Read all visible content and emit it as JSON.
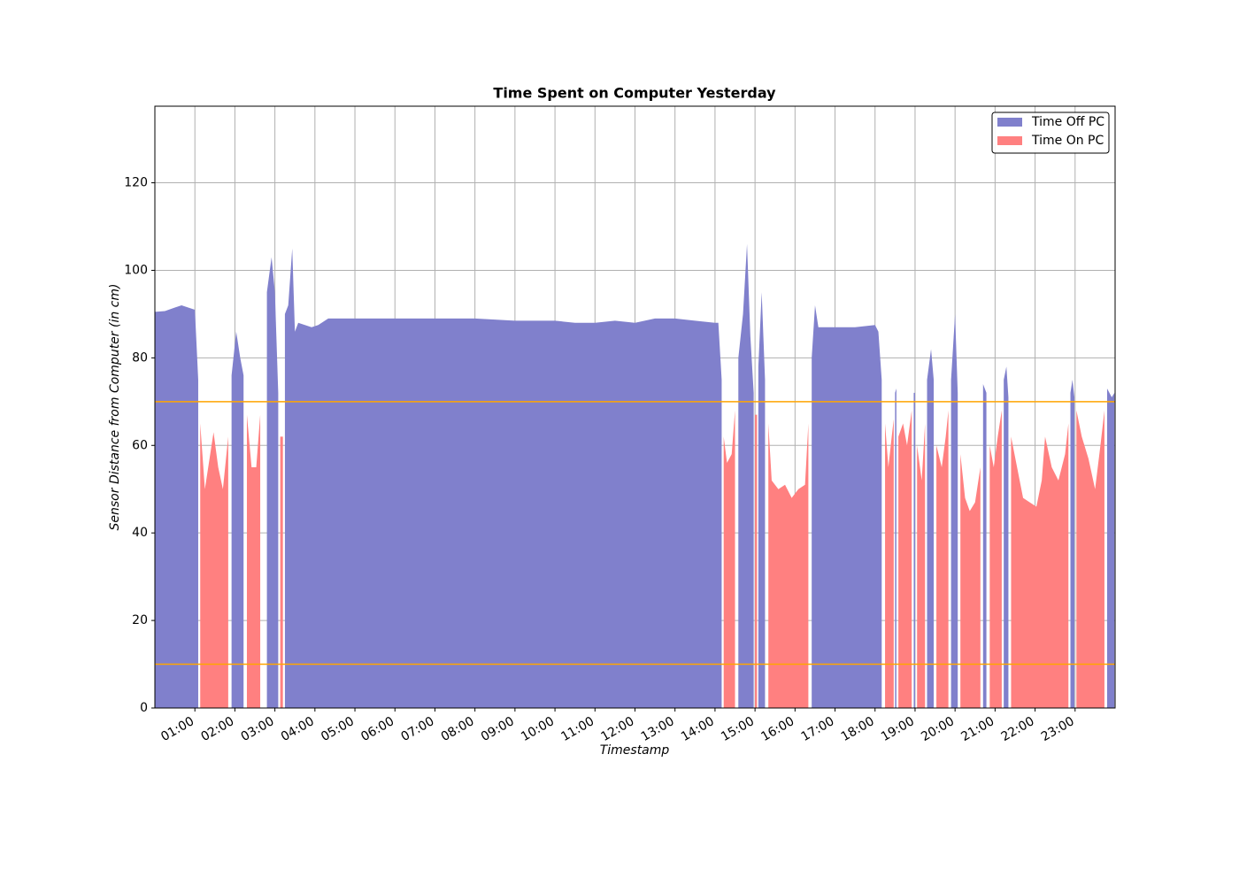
{
  "chart_data": {
    "type": "area",
    "title": "Time Spent on Computer Yesterday",
    "x_label": "Timestamp",
    "y_label": "Sensor Distance from Computer (in cm)",
    "x": [
      "00:00",
      "00:15",
      "00:30",
      "00:40",
      "00:50",
      "01:00",
      "01:05",
      "01:08",
      "01:15",
      "01:20",
      "01:28",
      "01:35",
      "01:42",
      "01:50",
      "01:55",
      "02:02",
      "02:08",
      "02:13",
      "02:18",
      "02:25",
      "02:32",
      "02:38",
      "02:48",
      "02:55",
      "03:00",
      "03:05",
      "03:08",
      "03:12",
      "03:15",
      "03:20",
      "03:26",
      "03:30",
      "03:35",
      "03:45",
      "03:55",
      "04:05",
      "04:20",
      "05:00",
      "06:00",
      "07:00",
      "08:00",
      "09:00",
      "10:00",
      "10:30",
      "11:00",
      "11:30",
      "12:00",
      "12:30",
      "13:00",
      "13:30",
      "14:00",
      "14:05",
      "14:10",
      "14:13",
      "14:18",
      "14:25",
      "14:30",
      "14:35",
      "14:42",
      "14:48",
      "14:53",
      "14:58",
      "15:00",
      "15:03",
      "15:05",
      "15:10",
      "15:15",
      "15:20",
      "15:25",
      "15:35",
      "15:45",
      "15:55",
      "16:05",
      "16:15",
      "16:20",
      "16:25",
      "16:30",
      "16:35",
      "17:00",
      "17:30",
      "18:00",
      "18:05",
      "18:10",
      "18:15",
      "18:20",
      "18:25",
      "18:28",
      "18:30",
      "18:32",
      "18:35",
      "18:42",
      "18:48",
      "18:55",
      "18:58",
      "19:00",
      "19:03",
      "19:10",
      "19:15",
      "19:18",
      "19:24",
      "19:28",
      "19:32",
      "19:40",
      "19:46",
      "19:50",
      "19:54",
      "20:00",
      "20:04",
      "20:08",
      "20:15",
      "20:22",
      "20:30",
      "20:38",
      "20:42",
      "20:47",
      "20:52",
      "20:58",
      "21:04",
      "21:10",
      "21:13",
      "21:17",
      "21:20",
      "21:24",
      "21:33",
      "21:42",
      "21:52",
      "22:02",
      "22:10",
      "22:15",
      "22:25",
      "22:35",
      "22:45",
      "22:50",
      "22:53",
      "22:56",
      "22:59",
      "23:02",
      "23:10",
      "23:20",
      "23:30",
      "23:38",
      "23:44",
      "23:48",
      "23:55",
      "23:59"
    ],
    "series": [
      {
        "name": "Time Off PC",
        "color": "#8080cc",
        "values": [
          90.5,
          90.7,
          91.5,
          92,
          91.5,
          91,
          75,
          null,
          null,
          null,
          null,
          null,
          null,
          null,
          76,
          86,
          80,
          76,
          null,
          null,
          null,
          null,
          95,
          103,
          95,
          72,
          null,
          null,
          90,
          92,
          105,
          86,
          88,
          87.5,
          87,
          87.5,
          89,
          89,
          89,
          89,
          89,
          88.5,
          88.5,
          88,
          88,
          88.5,
          88,
          89,
          89,
          88.5,
          88,
          88,
          75,
          null,
          null,
          null,
          null,
          80,
          90,
          106,
          85,
          72,
          null,
          null,
          78,
          95,
          75,
          null,
          null,
          null,
          null,
          null,
          null,
          null,
          null,
          80,
          92,
          87,
          87,
          87,
          87.5,
          86,
          75,
          null,
          null,
          null,
          null,
          72,
          73,
          null,
          null,
          null,
          null,
          72,
          72,
          null,
          null,
          null,
          75,
          82,
          75,
          null,
          null,
          null,
          null,
          75,
          90,
          72,
          null,
          null,
          null,
          null,
          null,
          74,
          72,
          null,
          null,
          null,
          null,
          75,
          78,
          71,
          null,
          null,
          null,
          null,
          null,
          null,
          null,
          null,
          null,
          null,
          null,
          72,
          75,
          71,
          null,
          null,
          null,
          null,
          null,
          null,
          73,
          71,
          72
        ]
      },
      {
        "name": "Time On PC",
        "color": "#ff8080",
        "values": [
          null,
          null,
          null,
          null,
          null,
          null,
          null,
          65,
          50,
          55,
          63,
          55,
          50,
          62,
          null,
          null,
          null,
          null,
          67,
          55,
          55,
          67,
          null,
          null,
          null,
          null,
          62,
          62,
          null,
          null,
          null,
          null,
          null,
          null,
          null,
          null,
          null,
          null,
          null,
          null,
          null,
          null,
          null,
          null,
          null,
          null,
          null,
          null,
          null,
          null,
          null,
          null,
          null,
          62,
          56,
          58,
          68,
          null,
          null,
          null,
          null,
          null,
          67,
          67,
          null,
          null,
          null,
          65,
          52,
          50,
          51,
          48,
          50,
          51,
          65,
          null,
          null,
          null,
          null,
          null,
          null,
          null,
          null,
          65,
          55,
          62,
          66,
          null,
          null,
          62,
          65,
          60,
          68,
          null,
          null,
          60,
          52,
          65,
          null,
          null,
          null,
          60,
          55,
          62,
          68,
          null,
          null,
          null,
          58,
          48,
          45,
          47,
          55,
          null,
          null,
          60,
          55,
          62,
          68,
          null,
          null,
          null,
          62,
          55,
          48,
          47,
          46,
          52,
          62,
          55,
          52,
          58,
          65,
          null,
          null,
          null,
          68,
          62,
          57,
          50,
          60,
          68,
          null,
          null,
          null
        ]
      }
    ],
    "hlines": [
      {
        "value": 70,
        "color": "orange"
      },
      {
        "value": 10,
        "color": "orange"
      }
    ],
    "xlim": [
      "00:00",
      "24:00"
    ],
    "xticks": [
      "01:00",
      "02:00",
      "03:00",
      "04:00",
      "05:00",
      "06:00",
      "07:00",
      "08:00",
      "09:00",
      "10:00",
      "11:00",
      "12:00",
      "13:00",
      "14:00",
      "15:00",
      "16:00",
      "17:00",
      "18:00",
      "19:00",
      "20:00",
      "21:00",
      "22:00",
      "23:00"
    ],
    "ylim": [
      0,
      137.5
    ],
    "yticks": [
      0,
      20,
      40,
      60,
      80,
      100,
      120
    ],
    "grid": true,
    "legend": "upper right"
  }
}
